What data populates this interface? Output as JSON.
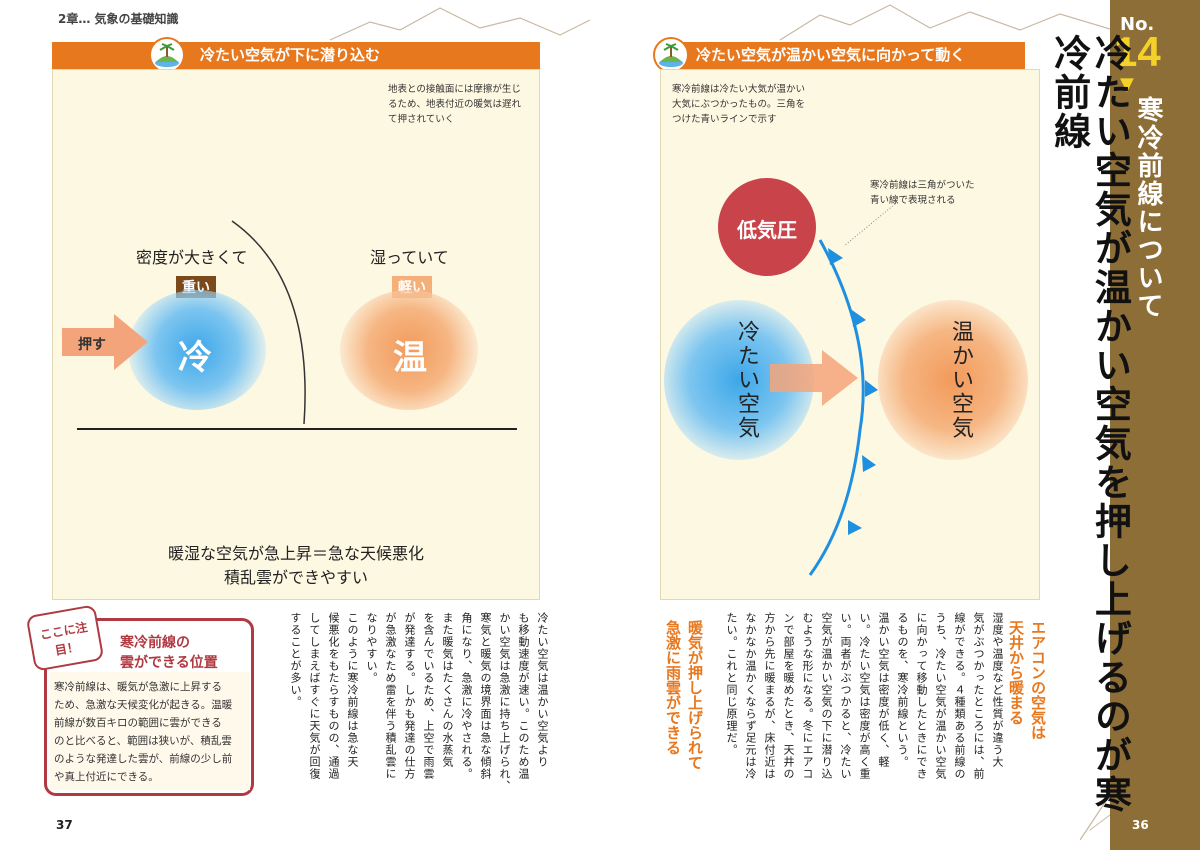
{
  "header": {
    "chapter": "2章… 気象の基礎知識"
  },
  "left_panel": {
    "title": "冷たい空気が下に潜り込む",
    "note": [
      "地表との接触面には摩擦が生じ",
      "るため、地表付近の暖気は遅れ",
      "て押されていく"
    ],
    "density_label": "密度が大きくて",
    "heavy_tag": "重い",
    "humid_label": "湿っていて",
    "light_tag": "軽い",
    "push_label": "押す",
    "cold_char": "冷",
    "warm_char": "温",
    "conclusion_1": "暖湿な空気が急上昇＝急な天候悪化",
    "conclusion_2": "積乱雲ができやすい"
  },
  "right_panel": {
    "title": "冷たい空気が温かい空気に向かって動く",
    "note": [
      "寒冷前線は冷たい大気が温かい",
      "大気にぶつかったもの。三角を",
      "つけた青いラインで示す"
    ],
    "note2": [
      "寒冷前線は三角がついた",
      "青い線で表現される"
    ],
    "low_pressure": "低気圧",
    "cold_air": "冷たい空気",
    "warm_air": "温かい空気"
  },
  "sidebar": {
    "no_label": "No.",
    "number": "14",
    "arrow": "▼",
    "topic": "寒冷前線について"
  },
  "main_title": "冷たい空気が温かい空気を押し上げるのが寒冷前線",
  "callout": {
    "badge": "ここに注目！",
    "title_1": "寒冷前線の",
    "title_2": "雲ができる位置",
    "lines": [
      "寒冷前線は、暖気が急激に上昇する",
      "ため、急激な天候変化が起きる。温暖",
      "前線が数百キロの範囲に雲ができる",
      "のと比べると、範囲は狭いが、積乱雲",
      "のような発達した雲が、前線の少し前",
      "や真上付近にできる。"
    ]
  },
  "left_body": [
    "冷たい空気は温かい空気より",
    "も移動速度が速い。このため温",
    "かい空気は急激に持ち上げられ、",
    "寒気と暖気の境界面は急な傾斜",
    "角になり、急激に冷やされる。",
    "また暖気はたくさんの水蒸気",
    "を含んでいるため、上空で雨雲",
    "が発達する。しかも発達の仕方",
    "が急激なため雷を伴う積乱雲に",
    "なりやすい。",
    "このように寒冷前線は急な天",
    "候悪化をもたらすものの、通過",
    "してしまえばすぐに天気が回復",
    "することが多い。"
  ],
  "right_body": [
    "湿度や温度など性質が違う大",
    "気がぶつかったところには、前",
    "線ができる。４種類ある前線の",
    "うち、冷たい空気が温かい空気",
    "に向かって移動したときにでき",
    "るものを、寒冷前線という。",
    "温かい空気は密度が低く、軽",
    "い。冷たい空気は密度が高く重",
    "い。両者がぶつかると、冷たい",
    "空気が温かい空気の下に潜り込",
    "むような形になる。冬にエアコ",
    "ンで部屋を暖めたとき、天井の",
    "方から先に暖まるが、床付近は",
    "なかなか温かくならず足元は冷",
    "たい。これと同じ原理だ。"
  ],
  "aircon_heading": [
    "エアコンの空気は",
    "天井から暖まる"
  ],
  "rain_heading": [
    "暖気が押し上げられて",
    "急激に雨雲ができる"
  ],
  "page_numbers": {
    "left": "37",
    "right": "36"
  }
}
